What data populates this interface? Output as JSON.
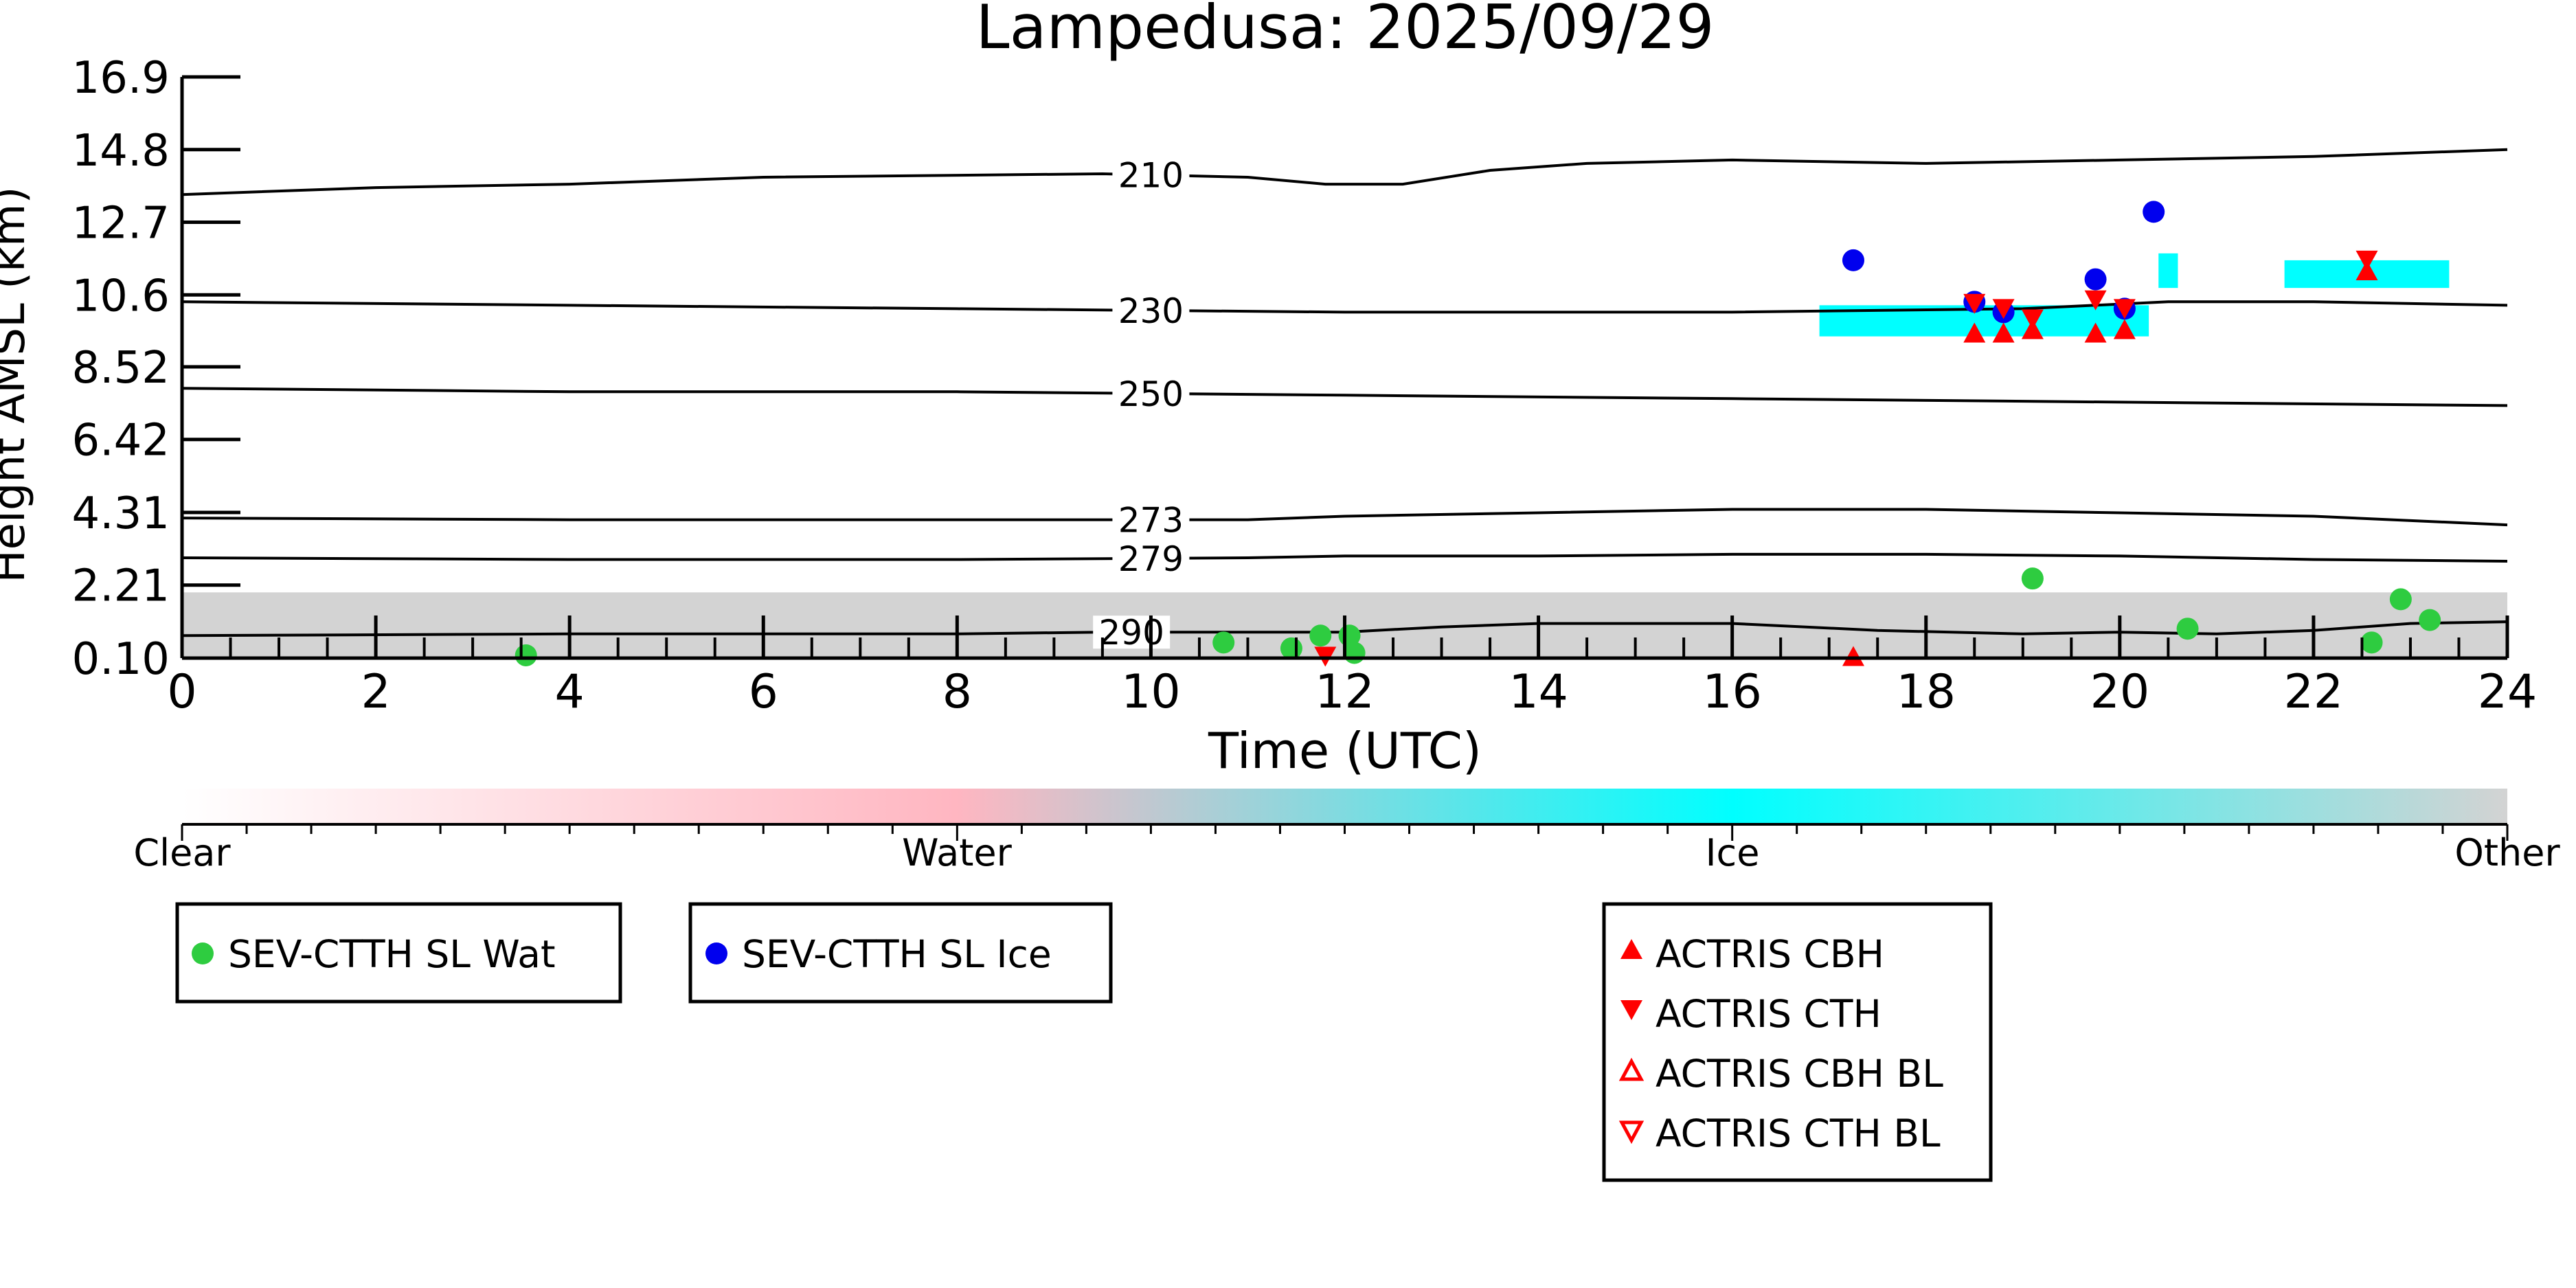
{
  "chart_data": {
    "type": "scatter",
    "title": "Lampedusa: 2025/09/29",
    "xlabel": "Time (UTC)",
    "ylabel": "Height AMSL (km)",
    "xlim": [
      0,
      24
    ],
    "ylim": [
      0.1,
      16.9
    ],
    "x_ticks": [
      "0",
      "2",
      "4",
      "6",
      "8",
      "10",
      "12",
      "14",
      "16",
      "18",
      "20",
      "22",
      "24"
    ],
    "y_ticks": [
      "0.10",
      "2.21",
      "4.31",
      "6.42",
      "8.52",
      "10.6",
      "12.7",
      "14.8",
      "16.9"
    ],
    "temperature_contours": [
      {
        "label": "210",
        "label_x": 10.0,
        "points": [
          [
            0,
            13.5
          ],
          [
            2,
            13.7
          ],
          [
            4,
            13.8
          ],
          [
            6,
            14.0
          ],
          [
            9.5,
            14.1
          ],
          [
            11,
            14.0
          ],
          [
            11.8,
            13.8
          ],
          [
            12.6,
            13.8
          ],
          [
            13.5,
            14.2
          ],
          [
            14.5,
            14.4
          ],
          [
            16,
            14.5
          ],
          [
            18,
            14.4
          ],
          [
            20,
            14.5
          ],
          [
            22,
            14.6
          ],
          [
            24,
            14.8
          ]
        ]
      },
      {
        "label": "230",
        "label_x": 10.0,
        "points": [
          [
            0,
            10.4
          ],
          [
            4,
            10.3
          ],
          [
            8,
            10.2
          ],
          [
            12,
            10.1
          ],
          [
            16,
            10.1
          ],
          [
            19,
            10.2
          ],
          [
            20.5,
            10.4
          ],
          [
            22,
            10.4
          ],
          [
            24,
            10.3
          ]
        ]
      },
      {
        "label": "250",
        "label_x": 10.0,
        "points": [
          [
            0,
            7.9
          ],
          [
            4,
            7.8
          ],
          [
            8,
            7.8
          ],
          [
            12,
            7.7
          ],
          [
            16,
            7.6
          ],
          [
            20,
            7.5
          ],
          [
            24,
            7.4
          ]
        ]
      },
      {
        "label": "273",
        "label_x": 10.0,
        "points": [
          [
            0,
            4.15
          ],
          [
            4,
            4.1
          ],
          [
            8,
            4.1
          ],
          [
            11,
            4.1
          ],
          [
            12,
            4.2
          ],
          [
            14,
            4.3
          ],
          [
            16,
            4.4
          ],
          [
            18,
            4.4
          ],
          [
            20,
            4.3
          ],
          [
            22,
            4.2
          ],
          [
            24,
            3.95
          ]
        ]
      },
      {
        "label": "279",
        "label_x": 10.0,
        "points": [
          [
            0,
            3.0
          ],
          [
            4,
            2.95
          ],
          [
            8,
            2.95
          ],
          [
            11,
            3.0
          ],
          [
            12,
            3.05
          ],
          [
            14,
            3.05
          ],
          [
            16,
            3.1
          ],
          [
            18,
            3.1
          ],
          [
            20,
            3.05
          ],
          [
            22,
            2.95
          ],
          [
            24,
            2.9
          ]
        ]
      },
      {
        "label": "290",
        "label_x": 9.8,
        "points": [
          [
            0,
            0.75
          ],
          [
            4,
            0.8
          ],
          [
            8,
            0.8
          ],
          [
            9.5,
            0.85
          ],
          [
            12,
            0.85
          ],
          [
            13,
            1.0
          ],
          [
            14,
            1.1
          ],
          [
            16,
            1.1
          ],
          [
            17.5,
            0.9
          ],
          [
            19,
            0.8
          ],
          [
            20,
            0.85
          ],
          [
            21,
            0.8
          ],
          [
            22,
            0.9
          ],
          [
            23,
            1.1
          ],
          [
            24,
            1.15
          ]
        ]
      }
    ],
    "cloud_fields": [
      {
        "class": "Other",
        "x0": 0,
        "x1": 24,
        "y0": 0.1,
        "y1": 2.0
      },
      {
        "class": "Ice",
        "x0": 16.9,
        "x1": 20.3,
        "y0": 9.4,
        "y1": 10.3
      },
      {
        "class": "Ice",
        "x0": 20.4,
        "x1": 20.6,
        "y0": 10.8,
        "y1": 11.8
      },
      {
        "class": "Ice",
        "x0": 21.7,
        "x1": 23.4,
        "y0": 10.8,
        "y1": 11.6
      }
    ],
    "series": [
      {
        "name": "SEV-CTTH SL Wat",
        "marker": "circle",
        "color": "#2ecc40",
        "x": [
          3.55,
          10.75,
          11.45,
          11.75,
          12.05,
          12.1,
          19.1,
          20.7,
          22.6,
          22.9,
          23.2
        ],
        "y": [
          0.18,
          0.55,
          0.38,
          0.75,
          0.75,
          0.25,
          2.4,
          0.95,
          0.55,
          1.8,
          1.2
        ]
      },
      {
        "name": "SEV-CTTH SL Ice",
        "marker": "circle",
        "color": "#0000ee",
        "x": [
          17.25,
          18.5,
          18.8,
          19.75,
          20.05,
          20.35
        ],
        "y": [
          11.6,
          10.4,
          10.1,
          11.05,
          10.2,
          13.0
        ]
      },
      {
        "name": "ACTRIS CBH",
        "marker": "triangle-up",
        "color": "#ff0000",
        "x": [
          18.5,
          18.8,
          19.1,
          19.75,
          20.05,
          22.55,
          17.25
        ],
        "y": [
          9.5,
          9.5,
          9.6,
          9.5,
          9.6,
          11.3,
          0.15
        ]
      },
      {
        "name": "ACTRIS CTH",
        "marker": "triangle-down",
        "color": "#ff0000",
        "x": [
          18.5,
          18.8,
          19.1,
          19.75,
          20.05,
          22.55,
          11.8
        ],
        "y": [
          10.35,
          10.2,
          9.9,
          10.45,
          10.2,
          11.6,
          0.15
        ]
      }
    ],
    "colorbar": {
      "labels": [
        "Clear",
        "Water",
        "Ice",
        "Other"
      ],
      "colors": [
        "#ffffff",
        "#ffb6c1",
        "#00ffff",
        "#d3d3d3"
      ]
    },
    "legends": [
      [
        "SEV-CTTH SL Wat"
      ],
      [
        "SEV-CTTH SL Ice"
      ],
      [
        "ACTRIS CBH",
        "ACTRIS CTH",
        "ACTRIS CBH BL",
        "ACTRIS CTH BL"
      ]
    ],
    "grid": false
  }
}
